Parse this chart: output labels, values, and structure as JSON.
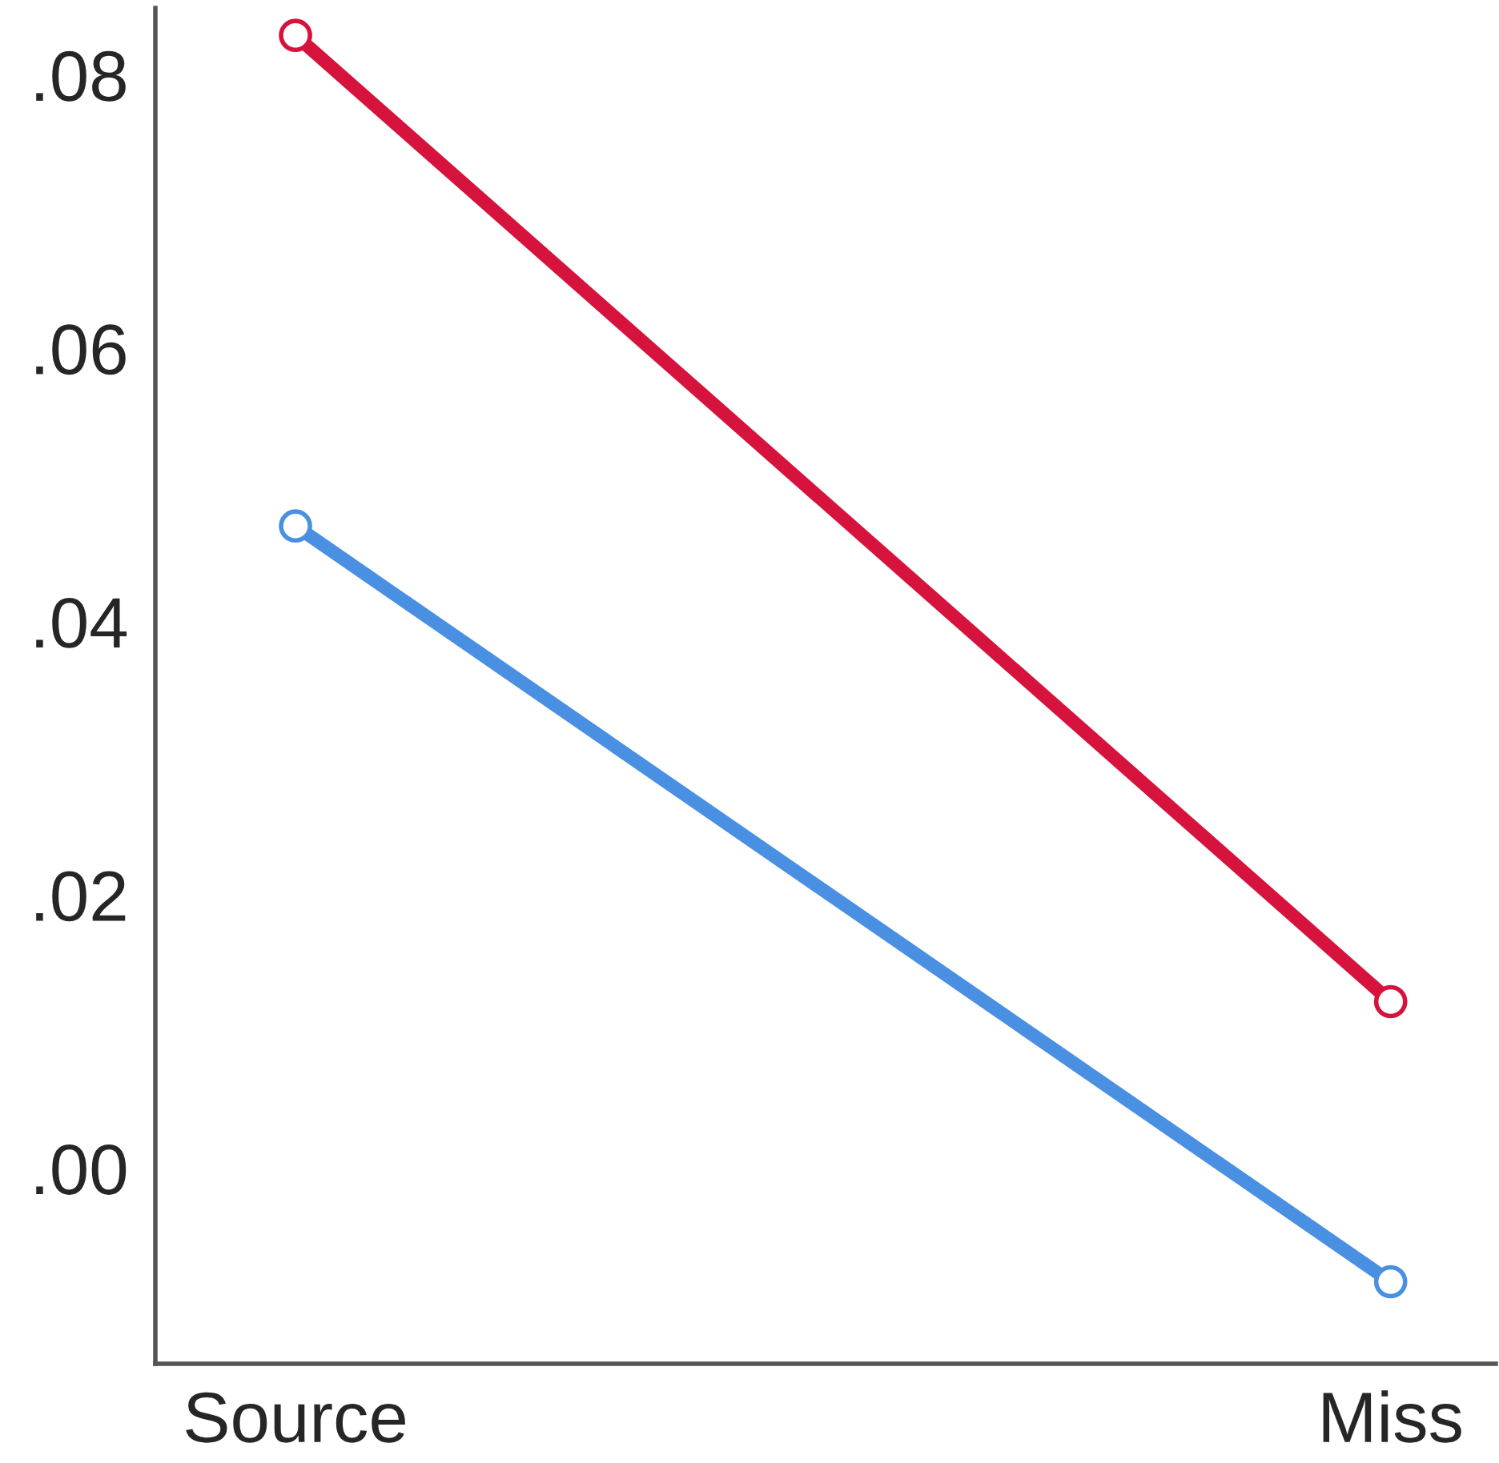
{
  "chart_data": {
    "type": "line",
    "categories": [
      "Source",
      "Miss"
    ],
    "series": [
      {
        "color": "#d6133c",
        "values": [
          0.0829,
          0.0122
        ]
      },
      {
        "color": "#4a90e2",
        "values": [
          0.047,
          -0.0083
        ]
      }
    ],
    "ylim": [
      -0.0143,
      0.0849
    ],
    "yticks": [
      {
        "value": 0.0,
        "label": ".00"
      },
      {
        "value": 0.02,
        "label": ".02"
      },
      {
        "value": 0.04,
        "label": ".04"
      },
      {
        "value": 0.06,
        "label": ".06"
      },
      {
        "value": 0.08,
        "label": ".08"
      }
    ],
    "marker": "circle",
    "line_style": "solid"
  }
}
